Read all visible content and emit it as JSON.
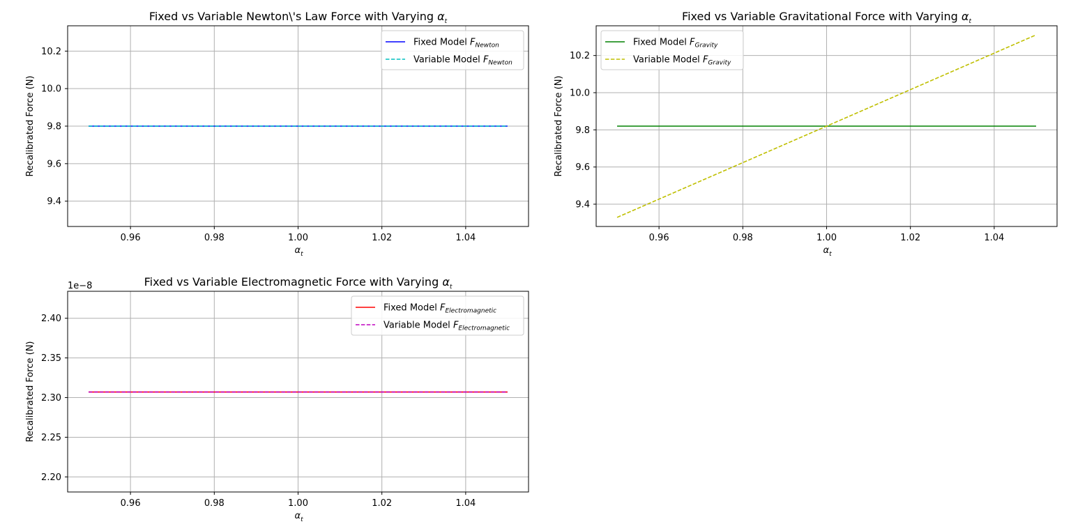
{
  "chart_data": [
    {
      "type": "line",
      "title": "Fixed vs Variable Newton\\'s Law Force with Varying",
      "title_symbol": {
        "base": "α",
        "sub": "t"
      },
      "xlabel": {
        "base": "α",
        "sub": "t"
      },
      "ylabel": "Recalibrated Force (N)",
      "xlim": [
        0.945,
        1.055
      ],
      "ylim": [
        9.265,
        10.335
      ],
      "xticks": [
        "0.96",
        "0.98",
        "1.00",
        "1.02",
        "1.04"
      ],
      "yticks": [
        "9.4",
        "9.6",
        "9.8",
        "10.0",
        "10.2"
      ],
      "offset_text": "",
      "grid": true,
      "legend_position": "upper right",
      "series": [
        {
          "name_prefix": "Fixed Model ",
          "name_sub": "Newton",
          "color": "#0000ff",
          "style": "solid",
          "x": [
            0.95,
            1.05
          ],
          "y": [
            9.8,
            9.8
          ]
        },
        {
          "name_prefix": "Variable Model ",
          "name_sub": "Newton",
          "color": "#00bfbf",
          "style": "dashed",
          "x": [
            0.95,
            1.05
          ],
          "y": [
            9.8,
            9.8
          ]
        }
      ]
    },
    {
      "type": "line",
      "title": "Fixed vs Variable Gravitational Force with Varying",
      "title_symbol": {
        "base": "α",
        "sub": "t"
      },
      "xlabel": {
        "base": "α",
        "sub": "t"
      },
      "ylabel": "Recalibrated Force (N)",
      "xlim": [
        0.945,
        1.055
      ],
      "ylim": [
        9.28,
        10.36
      ],
      "xticks": [
        "0.96",
        "0.98",
        "1.00",
        "1.02",
        "1.04"
      ],
      "yticks": [
        "9.4",
        "9.6",
        "9.8",
        "10.0",
        "10.2"
      ],
      "offset_text": "",
      "grid": true,
      "legend_position": "upper left",
      "series": [
        {
          "name_prefix": "Fixed Model ",
          "name_sub": "Gravity",
          "color": "#008000",
          "style": "solid",
          "x": [
            0.95,
            1.05
          ],
          "y": [
            9.82,
            9.82
          ]
        },
        {
          "name_prefix": "Variable Model ",
          "name_sub": "Gravity",
          "color": "#bfbf00",
          "style": "dashed",
          "x": [
            0.95,
            1.05
          ],
          "y": [
            9.329,
            10.311
          ]
        }
      ]
    },
    {
      "type": "line",
      "title": "Fixed vs Variable Electromagnetic Force with Varying",
      "title_symbol": {
        "base": "α",
        "sub": "t"
      },
      "xlabel": {
        "base": "α",
        "sub": "t"
      },
      "ylabel": "Recalibrated Force (N)",
      "xlim": [
        0.945,
        1.055
      ],
      "ylim": [
        2.181,
        2.434
      ],
      "xticks": [
        "0.96",
        "0.98",
        "1.00",
        "1.02",
        "1.04"
      ],
      "yticks": [
        "2.20",
        "2.25",
        "2.30",
        "2.35",
        "2.40"
      ],
      "offset_text": "1e−8",
      "grid": true,
      "legend_position": "upper right",
      "series": [
        {
          "name_prefix": "Fixed Model ",
          "name_sub": "Electromagnetic",
          "color": "#ff0000",
          "style": "solid",
          "x": [
            0.95,
            1.05
          ],
          "y": [
            2.307,
            2.307
          ]
        },
        {
          "name_prefix": "Variable Model ",
          "name_sub": "Electromagnetic",
          "color": "#bf00bf",
          "style": "dashed",
          "x": [
            0.95,
            1.05
          ],
          "y": [
            2.307,
            2.307
          ]
        }
      ]
    }
  ]
}
